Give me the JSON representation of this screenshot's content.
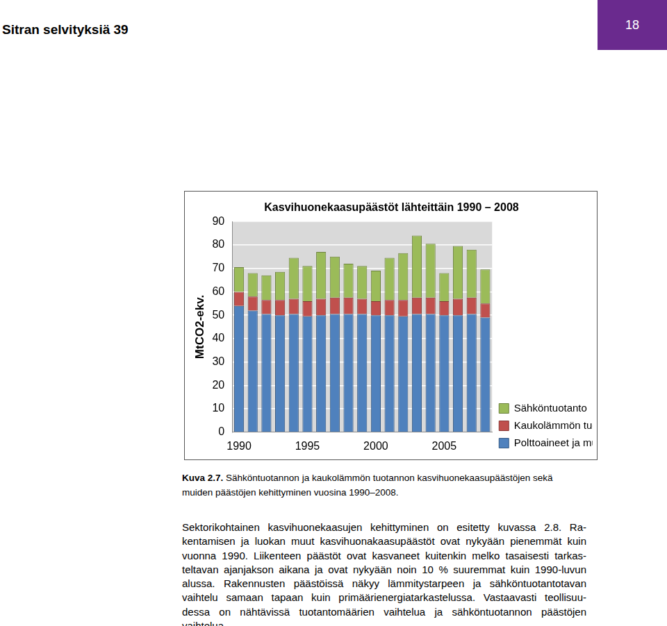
{
  "header": {
    "title": "Sitran selvityksiä 39",
    "page": "18"
  },
  "chart_data": {
    "type": "bar",
    "title": "Kasvihuonekaasupäästöt lähteittäin 1990 – 2008",
    "y_label": "MtCO2-ekv.",
    "categories": [
      "1990",
      null,
      null,
      null,
      null,
      "1995",
      null,
      null,
      null,
      null,
      "2000",
      null,
      null,
      null,
      null,
      "2005",
      null,
      null,
      null
    ],
    "series": [
      {
        "name": "Polttoaineet ja muut",
        "color": "#4f81bd",
        "values": [
          54,
          52,
          50.5,
          50,
          50.5,
          49.5,
          50,
          50.5,
          50.5,
          50.5,
          50,
          50,
          49.5,
          50.5,
          50.5,
          50,
          50,
          50.5,
          49
        ]
      },
      {
        "name": "Kaukolämmön tuotanto",
        "color": "#c0504d",
        "values": [
          6,
          6,
          6,
          6.5,
          6.5,
          6.5,
          7,
          7,
          7,
          6.5,
          6,
          6.5,
          7,
          7,
          7,
          6,
          7,
          7,
          6
        ]
      },
      {
        "name": "Sähköntuotanto",
        "color": "#9bbb59",
        "values": [
          10.5,
          10,
          10.5,
          12,
          17.5,
          15,
          20,
          17.5,
          14.5,
          14,
          13,
          18,
          20,
          26.5,
          23,
          12,
          22.5,
          20.5,
          14.5
        ]
      }
    ],
    "ylim": [
      0,
      90
    ],
    "yticks": [
      0,
      10,
      20,
      30,
      40,
      50,
      60,
      70,
      80,
      90
    ],
    "grid": true,
    "stacked": true,
    "legend": "lower right"
  },
  "caption": {
    "label": "Kuva 2.7.",
    "lines": [
      "Sähköntuotannon ja kaukolämmön tuotannon kasvihuonekaasupäästöjen sekä",
      "muiden päästöjen kehittyminen vuosina 1990–2008."
    ]
  },
  "body": {
    "lines": [
      "Sektorikohtainen kasvihuonekaasujen kehittyminen on esitetty kuvassa 2.8. Ra-",
      "kentamisen ja luokan muut kasvihuonakaasupäästöt ovat nykyään pienemmät kuin",
      "vuonna 1990. Liikenteen päästöt ovat kasvaneet kuitenkin melko tasaisesti tarkas-",
      "teltavan ajanjakson aikana ja ovat nykyään noin 10 % suuremmat kuin 1990-luvun",
      "alussa. Rakennusten päästöissä näkyy lämmitystarpeen ja sähköntuotantotavan",
      "vaihtelu samaan tapaan kuin primäärienergiatarkastelussa. Vastaavasti teollisuu-",
      "dessa on nähtävissä tuotantomäärien vaihtelua ja sähköntuotannon päästöjen",
      "vaihtelua."
    ]
  }
}
